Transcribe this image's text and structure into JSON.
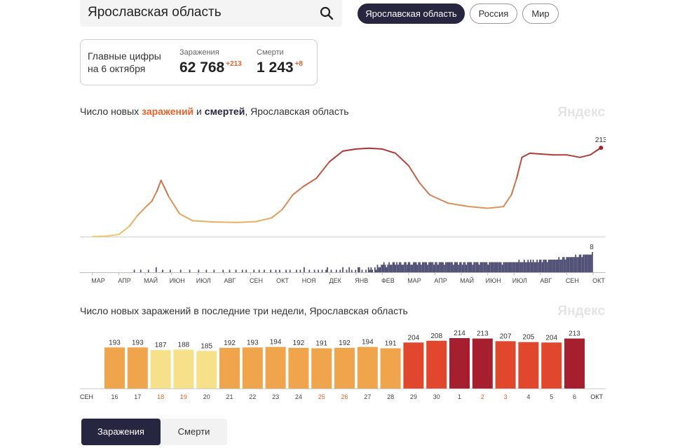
{
  "search": {
    "value": "Ярославская область"
  },
  "filters": [
    {
      "label": "Ярославская область",
      "active": true
    },
    {
      "label": "Россия",
      "active": false
    },
    {
      "label": "Мир",
      "active": false
    }
  ],
  "summary": {
    "title_line1": "Главные цифры",
    "title_line2": "на 6 октября",
    "cases_label": "Заражения",
    "cases_value": "62 768",
    "cases_delta": "+213",
    "deaths_label": "Смерти",
    "deaths_value": "1 243",
    "deaths_delta": "+8"
  },
  "watermark": "Яндекс",
  "colors": {
    "dark": "#262641",
    "accent": "#e8632b"
  },
  "chart_data": [
    {
      "type": "line",
      "title": "Число новых заражений и смертей, Ярославская область",
      "title_parts": {
        "prefix": "Число новых ",
        "infections": "заражений",
        "mid": " и ",
        "deaths": "смертей",
        "suffix": ", Ярославская область"
      },
      "x_ticks": [
        "МАР",
        "АПР",
        "МАЙ",
        "ИЮН",
        "ИЮЛ",
        "АВГ",
        "СЕН",
        "ОКТ",
        "НОЯ",
        "ДЕК",
        "ЯНВ",
        "ФЕВ",
        "МАР",
        "АПР",
        "МАЙ",
        "ИЮН",
        "ИЮЛ",
        "АВГ",
        "СЕН",
        "ОКТ"
      ],
      "ylim": [
        0,
        235
      ],
      "series": [
        {
          "name": "Заражения",
          "points": [
            [
              0,
              0
            ],
            [
              0.5,
              1
            ],
            [
              1,
              5
            ],
            [
              1.4,
              25
            ],
            [
              1.7,
              50
            ],
            [
              2,
              70
            ],
            [
              2.25,
              85
            ],
            [
              2.45,
              110
            ],
            [
              2.6,
              135
            ],
            [
              2.9,
              95
            ],
            [
              3.3,
              55
            ],
            [
              3.8,
              38
            ],
            [
              4.6,
              35
            ],
            [
              5.5,
              34
            ],
            [
              6.2,
              36
            ],
            [
              6.8,
              45
            ],
            [
              7.2,
              65
            ],
            [
              7.6,
              100
            ],
            [
              8,
              120
            ],
            [
              8.5,
              140
            ],
            [
              9,
              180
            ],
            [
              9.5,
              205
            ],
            [
              10,
              210
            ],
            [
              10.5,
              212
            ],
            [
              11,
              210
            ],
            [
              11.5,
              200
            ],
            [
              12,
              170
            ],
            [
              12.4,
              130
            ],
            [
              12.8,
              100
            ],
            [
              13.5,
              80
            ],
            [
              14.3,
              72
            ],
            [
              15,
              68
            ],
            [
              15.6,
              72
            ],
            [
              15.9,
              100
            ],
            [
              16.1,
              140
            ],
            [
              16.3,
              190
            ],
            [
              16.6,
              200
            ],
            [
              17,
              198
            ],
            [
              17.5,
              196
            ],
            [
              18,
              196
            ],
            [
              18.5,
              190
            ],
            [
              18.9,
              196
            ],
            [
              19.1,
              205
            ],
            [
              19.3,
              213
            ]
          ],
          "last_value": "213",
          "color_scale": [
            "#f5c86d",
            "#a51f2e"
          ]
        },
        {
          "name": "Смерти",
          "values": [
            0,
            0,
            0,
            0,
            0,
            0,
            0,
            0,
            0,
            0,
            0,
            0,
            0,
            0,
            0,
            0,
            0,
            0,
            0,
            0,
            0,
            0,
            0,
            0,
            0,
            0,
            0,
            0,
            0,
            0,
            0,
            0,
            1,
            0,
            0,
            0,
            0,
            1,
            0,
            0,
            0,
            0,
            0,
            1,
            0,
            0,
            0,
            0,
            0,
            2,
            0,
            0,
            0,
            0,
            1,
            0,
            0,
            0,
            0,
            0,
            1,
            0,
            0,
            0,
            0,
            0,
            0,
            0,
            1,
            0,
            0,
            0,
            0,
            0,
            0,
            1,
            0,
            0,
            0,
            0,
            0,
            0,
            1,
            0,
            0,
            0,
            0,
            0,
            1,
            0,
            0,
            0,
            0,
            0,
            1,
            0,
            0,
            0,
            0,
            0,
            0,
            1,
            0,
            0,
            0,
            0,
            1,
            0,
            0,
            0,
            0,
            1,
            0,
            0,
            0,
            0,
            1,
            0,
            0,
            1,
            0,
            0,
            0,
            0,
            0,
            1,
            0,
            0,
            0,
            1,
            0,
            0,
            0,
            1,
            0,
            0,
            0,
            0,
            1,
            0,
            0,
            0,
            1,
            0,
            0,
            1,
            0,
            0,
            0,
            0,
            1,
            0,
            0,
            1,
            0,
            0,
            0,
            0,
            1,
            0,
            0,
            1,
            0,
            0,
            2,
            0,
            0,
            0,
            1,
            0,
            0,
            0,
            1,
            0,
            0,
            1,
            0,
            0,
            1,
            0,
            0,
            1,
            2,
            0,
            0,
            1,
            0,
            0,
            0,
            1,
            0,
            0,
            1,
            0,
            2,
            0,
            0,
            1,
            0,
            2,
            0,
            1,
            0,
            0,
            1,
            0,
            2,
            2,
            0,
            1,
            0,
            0,
            1,
            0,
            2,
            1,
            2,
            1,
            0,
            2,
            1,
            3,
            2,
            2,
            3,
            3,
            4,
            3,
            2,
            3,
            4,
            3,
            3,
            4,
            4,
            3,
            4,
            3,
            4,
            4,
            3,
            3,
            4,
            4,
            3,
            4,
            4,
            3,
            3,
            4,
            4,
            4,
            3,
            4,
            4,
            3,
            4,
            4,
            4,
            4,
            3,
            4,
            4,
            4,
            4,
            3,
            4,
            4,
            3,
            4,
            4,
            4,
            4,
            3,
            4,
            4,
            4,
            4,
            4,
            4,
            3,
            4,
            4,
            4,
            3,
            4,
            4,
            3,
            4,
            4,
            3,
            4,
            4,
            4,
            4,
            3,
            4,
            4,
            4,
            4,
            3,
            4,
            4,
            4,
            4,
            4,
            4,
            3,
            4,
            4,
            4,
            4,
            4,
            4,
            4,
            4,
            4,
            4,
            3,
            4,
            4,
            4,
            4,
            4,
            4,
            4,
            4,
            4,
            4,
            4,
            4,
            5,
            4,
            4,
            4,
            5,
            4,
            4,
            5,
            4,
            5,
            4,
            5,
            4,
            4,
            5,
            4,
            5,
            5,
            4,
            5,
            5,
            5,
            4,
            5,
            5,
            5,
            5,
            5,
            5,
            5,
            5,
            6,
            5,
            5,
            6,
            6,
            5,
            6,
            6,
            6,
            6,
            6,
            6,
            6,
            7,
            6,
            6,
            7,
            7,
            6,
            7,
            7,
            7,
            7,
            7,
            7,
            7,
            8
          ],
          "last_value": "8",
          "color": "#4e4d73"
        }
      ]
    },
    {
      "type": "bar",
      "title": "Число новых заражений в последние три недели, Ярославская область",
      "categories": [
        "16",
        "17",
        "18",
        "19",
        "20",
        "21",
        "22",
        "23",
        "24",
        "25",
        "26",
        "27",
        "28",
        "29",
        "30",
        "1",
        "2",
        "3",
        "4",
        "5",
        "6"
      ],
      "values": [
        193,
        193,
        187,
        188,
        185,
        192,
        193,
        194,
        192,
        191,
        192,
        194,
        191,
        204,
        208,
        214,
        213,
        207,
        205,
        204,
        213
      ],
      "weekend": [
        false,
        false,
        true,
        true,
        false,
        false,
        false,
        false,
        false,
        true,
        true,
        false,
        false,
        false,
        false,
        false,
        true,
        true,
        false,
        false,
        false
      ],
      "month_start": "СЕН",
      "month_end": "ОКТ",
      "ylim": [
        0,
        214
      ],
      "colors": {
        "low": "#f7e08a",
        "mid": "#f0a44c",
        "high": "#e0472c",
        "top": "#a51f2e"
      }
    }
  ],
  "tabs": [
    {
      "label": "Заражения",
      "active": true
    },
    {
      "label": "Смерти",
      "active": false
    }
  ]
}
